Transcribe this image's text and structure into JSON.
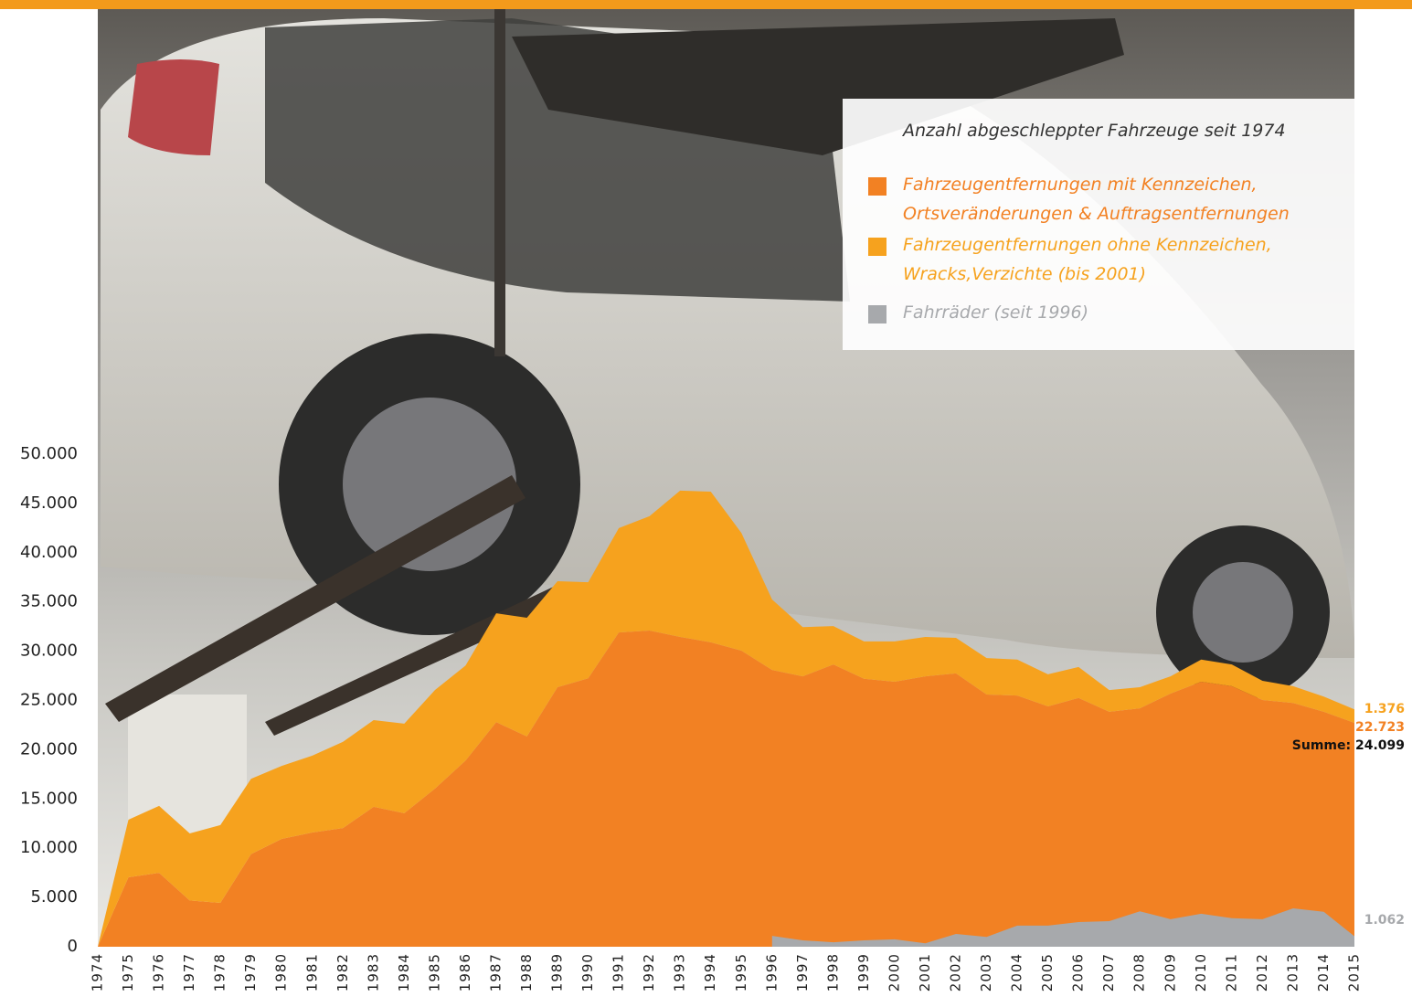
{
  "chart_data": {
    "type": "area",
    "title": "Anzahl abgeschleppter Fahrzeuge seit 1974",
    "categories": [
      "1974",
      "1975",
      "1976",
      "1977",
      "1978",
      "1979",
      "1980",
      "1981",
      "1982",
      "1983",
      "1984",
      "1985",
      "1986",
      "1987",
      "1988",
      "1989",
      "1990",
      "1991",
      "1992",
      "1993",
      "1994",
      "1995",
      "1996",
      "1997",
      "1998",
      "1999",
      "2000",
      "2001",
      "2002",
      "2003",
      "2004",
      "2005",
      "2006",
      "2007",
      "2008",
      "2009",
      "2010",
      "2011",
      "2012",
      "2013",
      "2014",
      "2015"
    ],
    "series": [
      {
        "name": "Fahrzeugentfernungen mit Kennzeichen,\nOrtsveränderungen & Auftragsentfernungen",
        "color": "#f28123",
        "stacked": true,
        "values": [
          0,
          7050,
          7500,
          4700,
          4450,
          9400,
          10950,
          11600,
          12050,
          14200,
          13550,
          16050,
          18900,
          22800,
          21350,
          26350,
          27250,
          31900,
          32100,
          31450,
          30900,
          30050,
          28100,
          27450,
          28650,
          27200,
          26900,
          27450,
          27750,
          25600,
          25500,
          24400,
          25250,
          23850,
          24200,
          25700,
          26900,
          26450,
          25050,
          24750,
          23850,
          22723
        ],
        "value_labels": [
          null,
          null,
          null,
          null,
          null,
          null,
          null,
          null,
          null,
          null,
          null,
          null,
          null,
          null,
          null,
          null,
          null,
          null,
          null,
          null,
          null,
          null,
          null,
          null,
          null,
          null,
          null,
          null,
          null,
          null,
          null,
          null,
          null,
          null,
          null,
          null,
          null,
          null,
          null,
          null,
          null,
          "22.723"
        ]
      },
      {
        "name": "Fahrzeugentfernungen ohne Kennzeichen,\nWracks,Verzichte (bis 2001)",
        "color": "#f6a21e",
        "stacked": true,
        "values": [
          0,
          5850,
          6800,
          6800,
          7900,
          7650,
          7400,
          7800,
          8750,
          8800,
          9100,
          10000,
          9650,
          11050,
          12050,
          10750,
          9750,
          10600,
          11600,
          14850,
          15300,
          11950,
          7150,
          5000,
          3900,
          3800,
          4100,
          4000,
          3600,
          3700,
          3650,
          3250,
          3150,
          2200,
          2150,
          1750,
          2250,
          2200,
          1950,
          1700,
          1550,
          1376
        ],
        "value_labels": [
          null,
          null,
          null,
          null,
          null,
          null,
          null,
          null,
          null,
          null,
          null,
          null,
          null,
          null,
          null,
          null,
          null,
          null,
          null,
          null,
          null,
          null,
          null,
          null,
          null,
          null,
          null,
          null,
          null,
          null,
          null,
          null,
          null,
          null,
          null,
          null,
          null,
          null,
          null,
          null,
          null,
          "1.376"
        ]
      },
      {
        "name": "Fahrräder (seit 1996)",
        "color": "#a7a9ac",
        "stacked": false,
        "values": [
          null,
          null,
          null,
          null,
          null,
          null,
          null,
          null,
          null,
          null,
          null,
          null,
          null,
          null,
          null,
          null,
          null,
          null,
          null,
          null,
          null,
          null,
          1100,
          650,
          450,
          650,
          750,
          350,
          1300,
          1000,
          2150,
          2150,
          2500,
          2600,
          3600,
          2800,
          3350,
          2900,
          2800,
          3900,
          3550,
          1062
        ],
        "value_labels": [
          null,
          null,
          null,
          null,
          null,
          null,
          null,
          null,
          null,
          null,
          null,
          null,
          null,
          null,
          null,
          null,
          null,
          null,
          null,
          null,
          null,
          null,
          null,
          null,
          null,
          null,
          null,
          null,
          null,
          null,
          null,
          null,
          null,
          null,
          null,
          null,
          null,
          null,
          null,
          null,
          null,
          "1.062"
        ]
      }
    ],
    "total_label": "Summe:",
    "total": 24099,
    "total_value_label": "24.099",
    "ylim": [
      0,
      50000
    ],
    "yticks": [
      0,
      {
        "value": 5000,
        "label": "5.000"
      },
      {
        "value": 10000,
        "label": "10.000"
      },
      {
        "value": 15000,
        "label": "15.000"
      },
      {
        "value": 20000,
        "label": "20.000"
      },
      {
        "value": 25000,
        "label": "25.000"
      },
      {
        "value": 30000,
        "label": "30.000"
      },
      {
        "value": 35000,
        "label": "35.000"
      },
      {
        "value": 40000,
        "label": "40.000"
      },
      {
        "value": 45000,
        "label": "45.000"
      },
      {
        "value": 50000,
        "label": "50.000"
      }
    ],
    "grid": false
  }
}
